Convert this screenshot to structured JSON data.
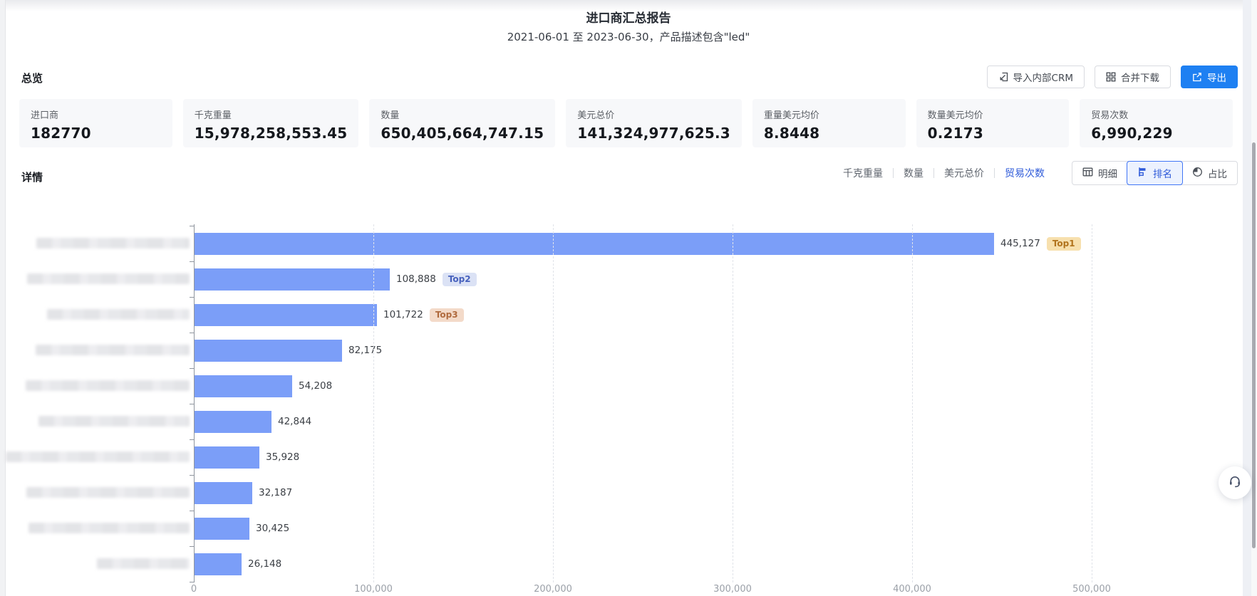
{
  "page": {
    "title": "进口商汇总报告",
    "subtitle": "2021-06-01 至 2023-06-30，产品描述包含\"led\""
  },
  "toolbar": {
    "import_crm_label": "导入内部CRM",
    "merge_download_label": "合并下载",
    "export_label": "导出"
  },
  "overview": {
    "heading": "总览",
    "cards": [
      {
        "label": "进口商",
        "value": "182770"
      },
      {
        "label": "千克重量",
        "value": "15,978,258,553.45"
      },
      {
        "label": "数量",
        "value": "650,405,664,747.15"
      },
      {
        "label": "美元总价",
        "value": "141,324,977,625.3"
      },
      {
        "label": "重量美元均价",
        "value": "8.8448"
      },
      {
        "label": "数量美元均价",
        "value": "0.2173"
      },
      {
        "label": "贸易次数",
        "value": "6,990,229"
      }
    ]
  },
  "detail": {
    "heading": "详情",
    "metrics": [
      {
        "label": "千克重量",
        "active": false
      },
      {
        "label": "数量",
        "active": false
      },
      {
        "label": "美元总价",
        "active": false
      },
      {
        "label": "贸易次数",
        "active": true
      }
    ],
    "views": [
      {
        "label": "明细",
        "icon": "table-icon",
        "active": false
      },
      {
        "label": "排名",
        "icon": "ranking-icon",
        "active": true
      },
      {
        "label": "占比",
        "icon": "pie-icon",
        "active": false
      }
    ]
  },
  "chart_data": {
    "type": "bar",
    "orientation": "horizontal",
    "metric": "贸易次数",
    "categories_masked": true,
    "xlim": [
      0,
      500000
    ],
    "x_ticks": [
      "0",
      "100,000",
      "200,000",
      "300,000",
      "400,000",
      "500,000"
    ],
    "grid": "dashed-vertical",
    "bar_color": "#7b9ef8",
    "rows": [
      {
        "value": 445127,
        "display": "445,127",
        "badge": "Top1",
        "mask_width": 215
      },
      {
        "value": 108888,
        "display": "108,888",
        "badge": "Top2",
        "mask_width": 228
      },
      {
        "value": 101722,
        "display": "101,722",
        "badge": "Top3",
        "mask_width": 200
      },
      {
        "value": 82175,
        "display": "82,175",
        "badge": "",
        "mask_width": 216
      },
      {
        "value": 54208,
        "display": "54,208",
        "badge": "",
        "mask_width": 230
      },
      {
        "value": 42844,
        "display": "42,844",
        "badge": "",
        "mask_width": 212
      },
      {
        "value": 35928,
        "display": "35,928",
        "badge": "",
        "mask_width": 258
      },
      {
        "value": 32187,
        "display": "32,187",
        "badge": "",
        "mask_width": 229
      },
      {
        "value": 30425,
        "display": "30,425",
        "badge": "",
        "mask_width": 226
      },
      {
        "value": 26148,
        "display": "26,148",
        "badge": "",
        "mask_width": 130
      }
    ]
  },
  "colors": {
    "primary_blue": "#1e80f2",
    "active_link_blue": "#2f5bd9",
    "bar_blue": "#7b9ef8",
    "top1_badge_bg": "#f7e0ae",
    "top2_badge_bg": "#dbe2f5",
    "top3_badge_bg": "#f3dac9"
  }
}
